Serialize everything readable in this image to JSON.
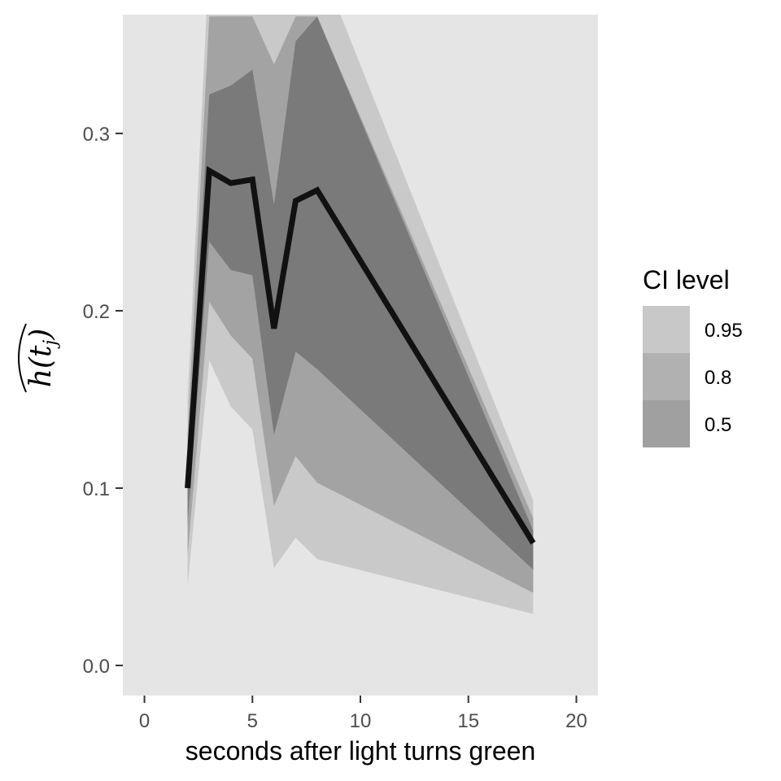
{
  "chart_data": {
    "type": "area",
    "title": "",
    "xlabel": "seconds after light turns green",
    "ylabel": "h(t_j)",
    "ylabel_parts": {
      "main": "h(t",
      "sub": "j",
      "close": ")"
    },
    "xlim": [
      -1,
      21
    ],
    "ylim": [
      -0.017,
      0.367
    ],
    "x_ticks": [
      0,
      5,
      10,
      15,
      20
    ],
    "y_ticks": [
      0.0,
      0.1,
      0.2,
      0.3
    ],
    "x_tick_labels": [
      "0",
      "5",
      "10",
      "15",
      "20"
    ],
    "y_tick_labels": [
      "0.0",
      "0.1",
      "0.2",
      "0.3"
    ],
    "grid": false,
    "legend_position": "right",
    "legend": {
      "title": "CI level",
      "items": [
        {
          "label": "0.95",
          "color": "#c8c8c8"
        },
        {
          "label": "0.8",
          "color": "#b1b1b1"
        },
        {
          "label": "0.5",
          "color": "#a0a0a0"
        }
      ]
    },
    "x": [
      2,
      3,
      4,
      5,
      6,
      7,
      8,
      18
    ],
    "estimate": [
      0.1,
      0.279,
      0.272,
      0.274,
      0.19,
      0.262,
      0.268,
      0.069
    ],
    "bands": [
      {
        "level": "0.95",
        "color": "#c9c9c9",
        "lower": [
          0.045,
          0.172,
          0.146,
          0.133,
          0.055,
          0.072,
          0.06,
          0.029
        ],
        "upper": [
          0.15,
          0.4,
          0.4,
          0.4,
          0.4,
          0.4,
          0.4,
          0.093
        ]
      },
      {
        "level": "0.8",
        "color": "#a3a3a3",
        "lower": [
          0.062,
          0.205,
          0.186,
          0.173,
          0.09,
          0.118,
          0.103,
          0.041
        ],
        "upper": [
          0.13,
          0.366,
          0.366,
          0.366,
          0.339,
          0.366,
          0.366,
          0.083
        ]
      },
      {
        "level": "0.5",
        "color": "#7a7a7a",
        "lower": [
          0.08,
          0.239,
          0.223,
          0.22,
          0.13,
          0.177,
          0.167,
          0.054
        ],
        "upper": [
          0.115,
          0.322,
          0.327,
          0.336,
          0.26,
          0.352,
          0.366,
          0.076
        ]
      }
    ],
    "colors": {
      "panel_background": "#e5e5e5",
      "line": "#111111",
      "axis_ticks": "#333333"
    }
  }
}
